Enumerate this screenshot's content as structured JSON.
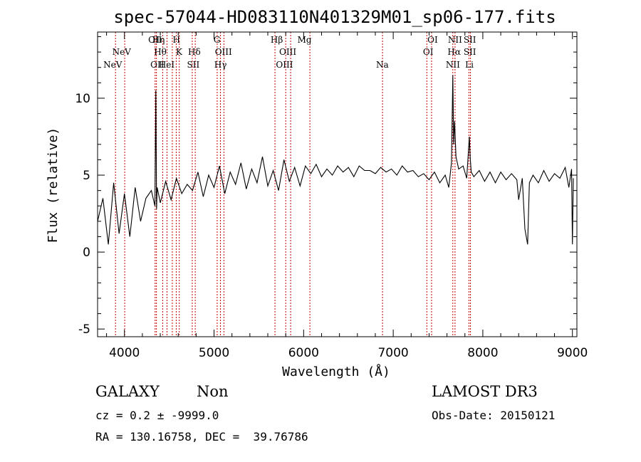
{
  "chart_data": {
    "type": "line",
    "title": "spec-57044-HD083110N401329M01_sp06-177.fits",
    "xlabel": "Wavelength (Å)",
    "ylabel": "Flux (relative)",
    "xlim": [
      3700,
      9050
    ],
    "ylim": [
      -5.5,
      14.3
    ],
    "xticks": [
      4000,
      5000,
      6000,
      7000,
      8000,
      9000
    ],
    "yticks": [
      -5,
      0,
      5,
      10
    ],
    "emission_lines": [
      {
        "label": "NeV",
        "wavelength": 3869,
        "row": 3
      },
      {
        "label": "NeV",
        "wavelength": 3968,
        "row": 2
      },
      {
        "label": "OII",
        "wavelength": 4342,
        "row": 1
      },
      {
        "label": "OII",
        "wavelength": 4366,
        "row": 3
      },
      {
        "label": "Hη",
        "wavelength": 4380,
        "row": 1
      },
      {
        "label": "Hθ",
        "wavelength": 4400,
        "row": 2
      },
      {
        "label": "HeI",
        "wavelength": 4471,
        "row": 3
      },
      {
        "label": "H",
        "wavelength": 4580,
        "row": 1
      },
      {
        "label": "K",
        "wavelength": 4610,
        "row": 2
      },
      {
        "label": "Hδ",
        "wavelength": 4780,
        "row": 2
      },
      {
        "label": "SII",
        "wavelength": 4768,
        "row": 3
      },
      {
        "label": "G",
        "wavelength": 5033,
        "row": 1
      },
      {
        "label": "OIII",
        "wavelength": 5105,
        "row": 2
      },
      {
        "label": "Hγ",
        "wavelength": 5072,
        "row": 3
      },
      {
        "label": "Hβ",
        "wavelength": 5700,
        "row": 1
      },
      {
        "label": "OIII",
        "wavelength": 5823,
        "row": 2
      },
      {
        "label": "OIII",
        "wavelength": 5786,
        "row": 3
      },
      {
        "label": "Mg",
        "wavelength": 6010,
        "row": 1
      },
      {
        "label": "Na",
        "wavelength": 6878,
        "row": 3
      },
      {
        "label": "OI",
        "wavelength": 7440,
        "row": 1
      },
      {
        "label": "OI",
        "wavelength": 7390,
        "row": 2
      },
      {
        "label": "NII",
        "wavelength": 7690,
        "row": 1
      },
      {
        "label": "Hα",
        "wavelength": 7680,
        "row": 2
      },
      {
        "label": "NII",
        "wavelength": 7666,
        "row": 3
      },
      {
        "label": "SII",
        "wavelength": 7855,
        "row": 1
      },
      {
        "label": "SII",
        "wavelength": 7855,
        "row": 2
      },
      {
        "label": "Li",
        "wavelength": 7850,
        "row": 3
      }
    ],
    "marker_wavelengths": [
      3900,
      4003,
      4342,
      4357,
      4427,
      4475,
      4534,
      4578,
      4612,
      4757,
      4790,
      5035,
      5071,
      5110,
      5680,
      5800,
      5855,
      6070,
      6880,
      7375,
      7428,
      7665,
      7690,
      7845,
      7862
    ],
    "spectrum": {
      "x": [
        3700,
        3760,
        3820,
        3880,
        3940,
        4000,
        4060,
        4120,
        4180,
        4240,
        4300,
        4340,
        4350,
        4358,
        4365,
        4400,
        4460,
        4520,
        4580,
        4640,
        4700,
        4760,
        4820,
        4880,
        4940,
        5000,
        5060,
        5120,
        5180,
        5240,
        5300,
        5360,
        5420,
        5480,
        5540,
        5600,
        5660,
        5720,
        5780,
        5840,
        5900,
        5960,
        6020,
        6080,
        6140,
        6200,
        6260,
        6320,
        6380,
        6440,
        6500,
        6560,
        6620,
        6680,
        6740,
        6800,
        6860,
        6920,
        6980,
        7040,
        7100,
        7160,
        7220,
        7280,
        7340,
        7400,
        7460,
        7520,
        7580,
        7620,
        7650,
        7665,
        7675,
        7685,
        7700,
        7730,
        7780,
        7820,
        7850,
        7858,
        7870,
        7900,
        7960,
        8020,
        8080,
        8140,
        8200,
        8260,
        8320,
        8380,
        8400,
        8440,
        8470,
        8500,
        8520,
        8560,
        8620,
        8680,
        8740,
        8800,
        8860,
        8920,
        8960,
        8990,
        9000,
        9010
      ],
      "y": [
        2.0,
        3.5,
        0.5,
        4.5,
        1.2,
        3.8,
        1.0,
        4.2,
        2.0,
        3.5,
        4.0,
        3.0,
        10.5,
        2.8,
        4.2,
        3.2,
        4.6,
        3.4,
        4.8,
        3.8,
        4.4,
        4.0,
        5.2,
        3.6,
        5.0,
        4.2,
        5.6,
        3.8,
        5.2,
        4.4,
        5.8,
        4.1,
        5.4,
        4.5,
        6.2,
        4.3,
        5.3,
        4.0,
        6.0,
        4.6,
        5.5,
        4.3,
        5.6,
        5.1,
        5.7,
        4.9,
        5.4,
        5.0,
        5.6,
        5.2,
        5.5,
        4.9,
        5.6,
        5.3,
        5.3,
        5.1,
        5.5,
        5.2,
        5.4,
        5.0,
        5.6,
        5.2,
        5.3,
        4.9,
        5.1,
        4.7,
        5.2,
        4.5,
        5.0,
        4.2,
        5.8,
        11.5,
        7.0,
        8.5,
        6.2,
        5.4,
        5.6,
        4.8,
        7.5,
        6.2,
        5.2,
        4.9,
        5.3,
        4.6,
        5.2,
        4.5,
        5.2,
        4.7,
        5.1,
        4.7,
        3.4,
        4.8,
        1.5,
        0.5,
        4.5,
        5.0,
        4.5,
        5.3,
        4.6,
        5.1,
        4.8,
        5.5,
        4.2,
        5.4,
        0.5,
        4.8
      ]
    }
  },
  "info": {
    "class": "GALAXY",
    "subclass": "Non",
    "survey": "LAMOST DR3",
    "cz": "cz = 0.2 ± -9999.0",
    "obs_date": "Obs-Date: 20150121",
    "coords": "RA = 130.16758, DEC =  39.76786"
  }
}
